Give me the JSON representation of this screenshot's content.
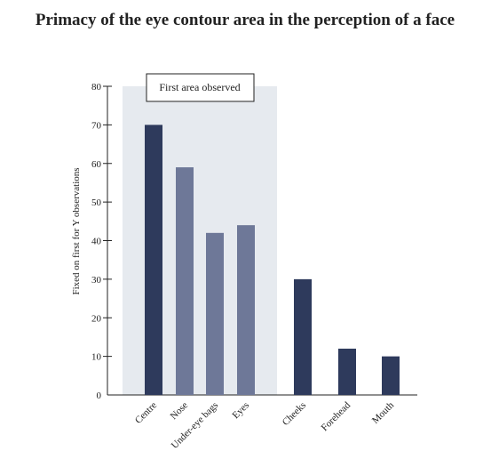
{
  "chart_data": {
    "type": "bar",
    "title": "Primacy of the eye contour area in the perception of a face",
    "ylabel": "Fixed on first for Y observations",
    "xlabel": "",
    "ylim": [
      0,
      80
    ],
    "yticks": [
      0,
      10,
      20,
      30,
      40,
      50,
      60,
      70,
      80
    ],
    "categories": [
      "Centre",
      "Nose",
      "Under-eye bags",
      "Eyes",
      "Cheeks",
      "Forehead",
      "Mouth"
    ],
    "values": [
      70,
      59,
      42,
      44,
      30,
      12,
      10
    ],
    "bar_colors": [
      "#2e3a5c",
      "#6e7898",
      "#6e7898",
      "#6e7898",
      "#2e3a5c",
      "#2e3a5c",
      "#2e3a5c"
    ],
    "highlight_region": {
      "label": "First area observed",
      "categories": [
        "Centre",
        "Nose",
        "Under-eye bags",
        "Eyes"
      ],
      "color": "#e6eaef"
    },
    "grid": false,
    "legend": "none"
  }
}
